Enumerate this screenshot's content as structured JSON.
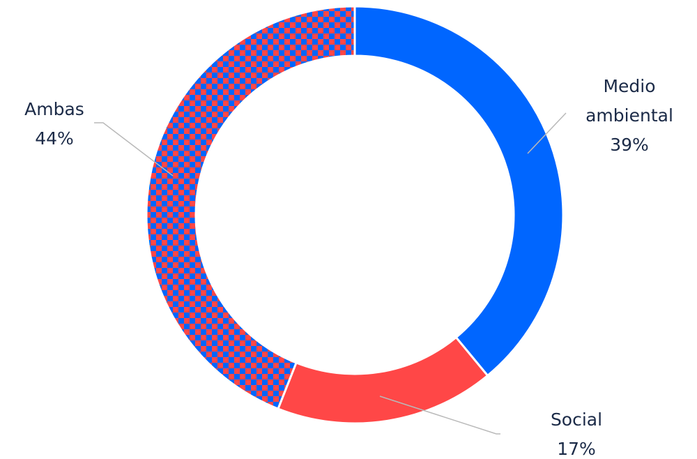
{
  "chart_data": {
    "type": "donut",
    "categories": [
      "Medio ambiental",
      "Social",
      "Ambas"
    ],
    "values": [
      39,
      17,
      44
    ],
    "value_labels": [
      "39%",
      "17%",
      "44%"
    ],
    "colors": [
      "#0066ff",
      "#ff4747",
      [
        "#0066ff",
        "#ff4747"
      ]
    ]
  }
}
